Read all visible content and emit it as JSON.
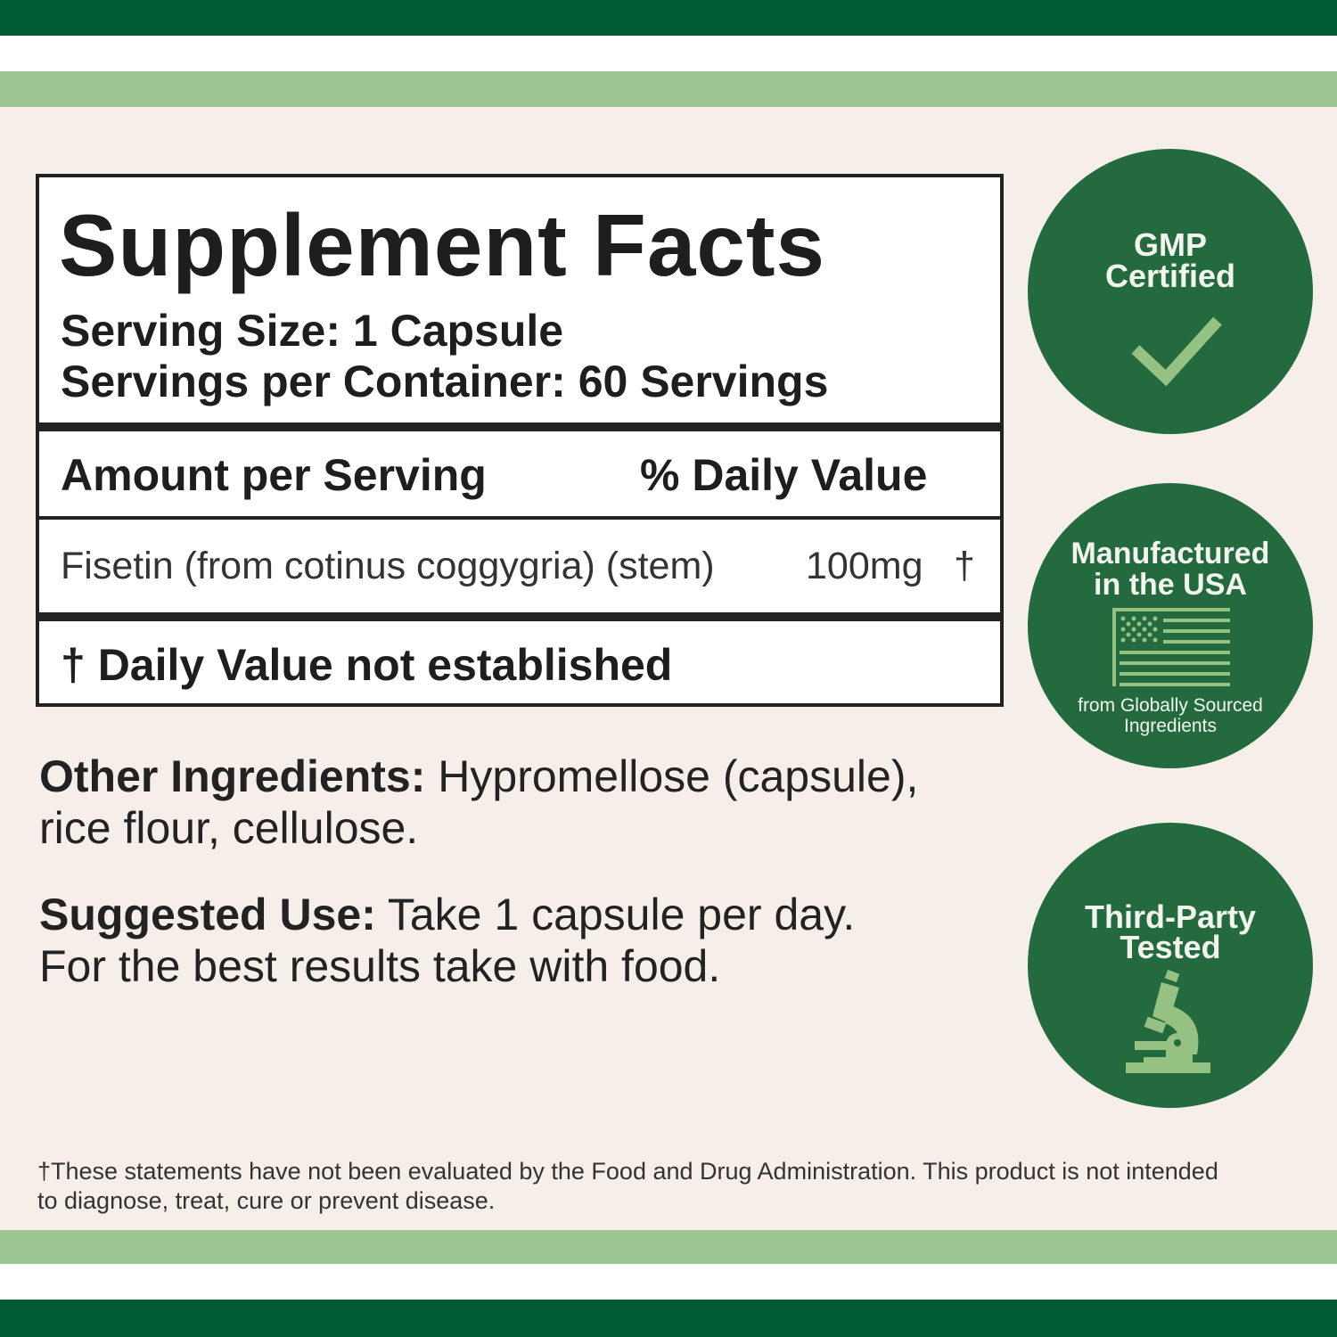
{
  "colors": {
    "dark_green": "#005a32",
    "light_green": "#9dc593",
    "background": "#f6eee9",
    "badge_green": "#236b3e",
    "icon_green": "#95c182"
  },
  "facts": {
    "title": "Supplement Facts",
    "serving_size": "Serving Size: 1 Capsule",
    "servings_per_container": "Servings per Container: 60 Servings",
    "amount_header": "Amount per Serving",
    "dv_header": "% Daily Value",
    "ingredient": {
      "name": "Fisetin (from cotinus coggygria) (stem)",
      "amount": "100mg",
      "dv": "†"
    },
    "footnote": "† Daily Value not established"
  },
  "other_ingredients": {
    "label": "Other Ingredients:",
    "text": "Hypromellose (capsule), rice flour, cellulose."
  },
  "suggested_use": {
    "label": "Suggested Use:",
    "text": "Take 1 capsule per day. For the best results take with food."
  },
  "disclaimer": "†These statements have not been evaluated by the Food and Drug Administration. This product is not intended to diagnose, treat, cure or prevent disease.",
  "badges": [
    {
      "line1": "GMP",
      "line2": "Certified",
      "icon": "checkmark-icon"
    },
    {
      "line1": "Manufactured",
      "line2": "in the USA",
      "caption1": "from Globally Sourced",
      "caption2": "Ingredients",
      "icon": "us-flag-icon"
    },
    {
      "line1": "Third-Party",
      "line2": "Tested",
      "icon": "microscope-icon"
    }
  ]
}
